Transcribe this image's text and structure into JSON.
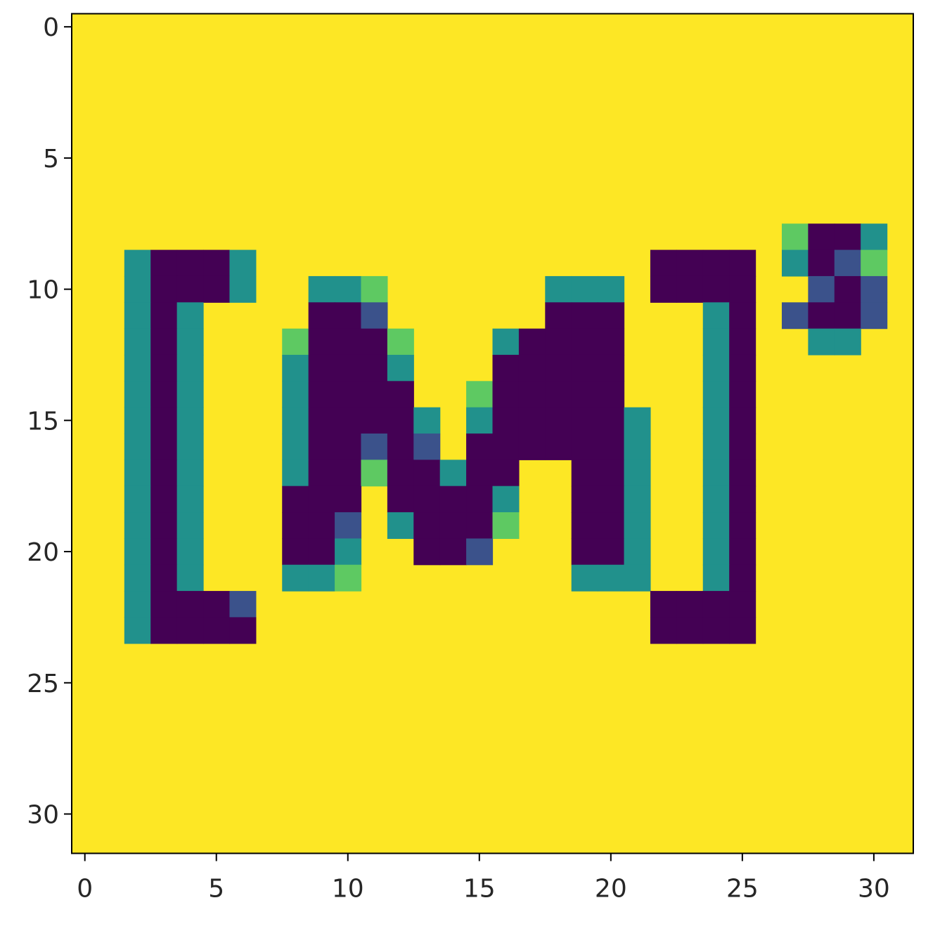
{
  "chart_data": {
    "type": "heatmap",
    "title": "",
    "xlabel": "",
    "ylabel": "",
    "rows": 32,
    "cols": 32,
    "xlim": [
      -0.5,
      31.5
    ],
    "ylim": [
      31.5,
      -0.5
    ],
    "xticks": [
      0,
      5,
      10,
      15,
      20,
      25,
      30
    ],
    "yticks": [
      0,
      5,
      10,
      15,
      20,
      25,
      30
    ],
    "xtick_labels": [
      "0",
      "5",
      "10",
      "15",
      "20",
      "25",
      "30"
    ],
    "ytick_labels": [
      "0",
      "5",
      "10",
      "15",
      "20",
      "25",
      "30"
    ],
    "grid": false,
    "colormap": "viridis",
    "vmin": 0,
    "vmax": 4,
    "palette": [
      "#440154",
      "#3b528b",
      "#21918c",
      "#5ec962",
      "#fde725"
    ],
    "background_value": 4,
    "cells": [
      [
        9,
        2,
        2
      ],
      [
        9,
        3,
        0
      ],
      [
        9,
        4,
        0
      ],
      [
        9,
        5,
        0
      ],
      [
        9,
        6,
        2
      ],
      [
        10,
        2,
        2
      ],
      [
        10,
        3,
        0
      ],
      [
        10,
        4,
        0
      ],
      [
        10,
        5,
        0
      ],
      [
        10,
        6,
        2
      ],
      [
        11,
        2,
        2
      ],
      [
        11,
        3,
        0
      ],
      [
        11,
        4,
        2
      ],
      [
        12,
        2,
        2
      ],
      [
        12,
        3,
        0
      ],
      [
        12,
        4,
        2
      ],
      [
        13,
        2,
        2
      ],
      [
        13,
        3,
        0
      ],
      [
        13,
        4,
        2
      ],
      [
        14,
        2,
        2
      ],
      [
        14,
        3,
        0
      ],
      [
        14,
        4,
        2
      ],
      [
        15,
        2,
        2
      ],
      [
        15,
        3,
        0
      ],
      [
        15,
        4,
        2
      ],
      [
        16,
        2,
        2
      ],
      [
        16,
        3,
        0
      ],
      [
        16,
        4,
        2
      ],
      [
        17,
        2,
        2
      ],
      [
        17,
        3,
        0
      ],
      [
        17,
        4,
        2
      ],
      [
        18,
        2,
        2
      ],
      [
        18,
        3,
        0
      ],
      [
        18,
        4,
        2
      ],
      [
        19,
        2,
        2
      ],
      [
        19,
        3,
        0
      ],
      [
        19,
        4,
        2
      ],
      [
        20,
        2,
        2
      ],
      [
        20,
        3,
        0
      ],
      [
        20,
        4,
        2
      ],
      [
        21,
        2,
        2
      ],
      [
        21,
        3,
        0
      ],
      [
        21,
        4,
        2
      ],
      [
        22,
        2,
        2
      ],
      [
        22,
        3,
        0
      ],
      [
        22,
        4,
        0
      ],
      [
        22,
        5,
        0
      ],
      [
        22,
        6,
        1
      ],
      [
        23,
        2,
        2
      ],
      [
        23,
        3,
        0
      ],
      [
        23,
        4,
        0
      ],
      [
        23,
        5,
        0
      ],
      [
        23,
        6,
        0
      ],
      [
        10,
        9,
        2
      ],
      [
        10,
        10,
        2
      ],
      [
        10,
        11,
        3
      ],
      [
        10,
        18,
        2
      ],
      [
        10,
        19,
        2
      ],
      [
        10,
        20,
        2
      ],
      [
        11,
        9,
        0
      ],
      [
        11,
        10,
        0
      ],
      [
        11,
        11,
        1
      ],
      [
        11,
        18,
        0
      ],
      [
        11,
        19,
        0
      ],
      [
        11,
        20,
        0
      ],
      [
        12,
        8,
        3
      ],
      [
        12,
        9,
        0
      ],
      [
        12,
        10,
        0
      ],
      [
        12,
        11,
        0
      ],
      [
        12,
        12,
        3
      ],
      [
        12,
        16,
        2
      ],
      [
        12,
        17,
        0
      ],
      [
        12,
        18,
        0
      ],
      [
        12,
        19,
        0
      ],
      [
        12,
        20,
        0
      ],
      [
        13,
        8,
        2
      ],
      [
        13,
        9,
        0
      ],
      [
        13,
        10,
        0
      ],
      [
        13,
        11,
        0
      ],
      [
        13,
        12,
        2
      ],
      [
        13,
        16,
        0
      ],
      [
        13,
        17,
        0
      ],
      [
        13,
        18,
        0
      ],
      [
        13,
        19,
        0
      ],
      [
        13,
        20,
        0
      ],
      [
        14,
        8,
        2
      ],
      [
        14,
        9,
        0
      ],
      [
        14,
        10,
        0
      ],
      [
        14,
        11,
        0
      ],
      [
        14,
        12,
        0
      ],
      [
        14,
        15,
        3
      ],
      [
        14,
        16,
        0
      ],
      [
        14,
        17,
        0
      ],
      [
        14,
        18,
        0
      ],
      [
        14,
        19,
        0
      ],
      [
        14,
        20,
        0
      ],
      [
        15,
        8,
        2
      ],
      [
        15,
        9,
        0
      ],
      [
        15,
        10,
        0
      ],
      [
        15,
        11,
        0
      ],
      [
        15,
        12,
        0
      ],
      [
        15,
        13,
        2
      ],
      [
        15,
        15,
        2
      ],
      [
        15,
        16,
        0
      ],
      [
        15,
        17,
        0
      ],
      [
        15,
        18,
        0
      ],
      [
        15,
        19,
        0
      ],
      [
        15,
        20,
        0
      ],
      [
        15,
        21,
        2
      ],
      [
        16,
        8,
        2
      ],
      [
        16,
        9,
        0
      ],
      [
        16,
        10,
        0
      ],
      [
        16,
        11,
        1
      ],
      [
        16,
        12,
        0
      ],
      [
        16,
        13,
        1
      ],
      [
        16,
        15,
        0
      ],
      [
        16,
        16,
        0
      ],
      [
        16,
        17,
        0
      ],
      [
        16,
        18,
        0
      ],
      [
        16,
        19,
        0
      ],
      [
        16,
        20,
        0
      ],
      [
        16,
        21,
        2
      ],
      [
        17,
        8,
        2
      ],
      [
        17,
        9,
        0
      ],
      [
        17,
        10,
        0
      ],
      [
        17,
        11,
        3
      ],
      [
        17,
        12,
        0
      ],
      [
        17,
        13,
        0
      ],
      [
        17,
        14,
        2
      ],
      [
        17,
        15,
        0
      ],
      [
        17,
        16,
        0
      ],
      [
        17,
        19,
        0
      ],
      [
        17,
        20,
        0
      ],
      [
        17,
        21,
        2
      ],
      [
        18,
        8,
        0
      ],
      [
        18,
        9,
        0
      ],
      [
        18,
        10,
        0
      ],
      [
        18,
        12,
        0
      ],
      [
        18,
        13,
        0
      ],
      [
        18,
        14,
        0
      ],
      [
        18,
        15,
        0
      ],
      [
        18,
        16,
        2
      ],
      [
        18,
        19,
        0
      ],
      [
        18,
        20,
        0
      ],
      [
        18,
        21,
        2
      ],
      [
        19,
        8,
        0
      ],
      [
        19,
        9,
        0
      ],
      [
        19,
        10,
        1
      ],
      [
        19,
        12,
        2
      ],
      [
        19,
        13,
        0
      ],
      [
        19,
        14,
        0
      ],
      [
        19,
        15,
        0
      ],
      [
        19,
        16,
        3
      ],
      [
        19,
        19,
        0
      ],
      [
        19,
        20,
        0
      ],
      [
        19,
        21,
        2
      ],
      [
        20,
        8,
        0
      ],
      [
        20,
        9,
        0
      ],
      [
        20,
        10,
        2
      ],
      [
        20,
        13,
        0
      ],
      [
        20,
        14,
        0
      ],
      [
        20,
        15,
        1
      ],
      [
        20,
        19,
        0
      ],
      [
        20,
        20,
        0
      ],
      [
        20,
        21,
        2
      ],
      [
        21,
        8,
        2
      ],
      [
        21,
        9,
        2
      ],
      [
        21,
        10,
        3
      ],
      [
        21,
        19,
        2
      ],
      [
        21,
        20,
        2
      ],
      [
        21,
        21,
        2
      ],
      [
        9,
        22,
        0
      ],
      [
        9,
        23,
        0
      ],
      [
        9,
        24,
        0
      ],
      [
        9,
        25,
        0
      ],
      [
        10,
        22,
        0
      ],
      [
        10,
        23,
        0
      ],
      [
        10,
        24,
        0
      ],
      [
        10,
        25,
        0
      ],
      [
        11,
        24,
        2
      ],
      [
        11,
        25,
        0
      ],
      [
        12,
        24,
        2
      ],
      [
        12,
        25,
        0
      ],
      [
        13,
        24,
        2
      ],
      [
        13,
        25,
        0
      ],
      [
        14,
        24,
        2
      ],
      [
        14,
        25,
        0
      ],
      [
        15,
        24,
        2
      ],
      [
        15,
        25,
        0
      ],
      [
        16,
        24,
        2
      ],
      [
        16,
        25,
        0
      ],
      [
        17,
        24,
        2
      ],
      [
        17,
        25,
        0
      ],
      [
        18,
        24,
        2
      ],
      [
        18,
        25,
        0
      ],
      [
        19,
        24,
        2
      ],
      [
        19,
        25,
        0
      ],
      [
        20,
        24,
        2
      ],
      [
        20,
        25,
        0
      ],
      [
        21,
        24,
        2
      ],
      [
        21,
        25,
        0
      ],
      [
        22,
        22,
        0
      ],
      [
        22,
        23,
        0
      ],
      [
        22,
        24,
        0
      ],
      [
        22,
        25,
        0
      ],
      [
        23,
        22,
        0
      ],
      [
        23,
        23,
        0
      ],
      [
        23,
        24,
        0
      ],
      [
        23,
        25,
        0
      ],
      [
        8,
        27,
        3
      ],
      [
        8,
        28,
        0
      ],
      [
        8,
        29,
        0
      ],
      [
        8,
        30,
        2
      ],
      [
        9,
        27,
        2
      ],
      [
        9,
        28,
        0
      ],
      [
        9,
        29,
        1
      ],
      [
        9,
        30,
        3
      ],
      [
        10,
        28,
        1
      ],
      [
        10,
        29,
        0
      ],
      [
        10,
        30,
        1
      ],
      [
        11,
        27,
        1
      ],
      [
        11,
        28,
        0
      ],
      [
        11,
        29,
        0
      ],
      [
        11,
        30,
        1
      ],
      [
        12,
        28,
        2
      ],
      [
        12,
        29,
        2
      ]
    ]
  }
}
